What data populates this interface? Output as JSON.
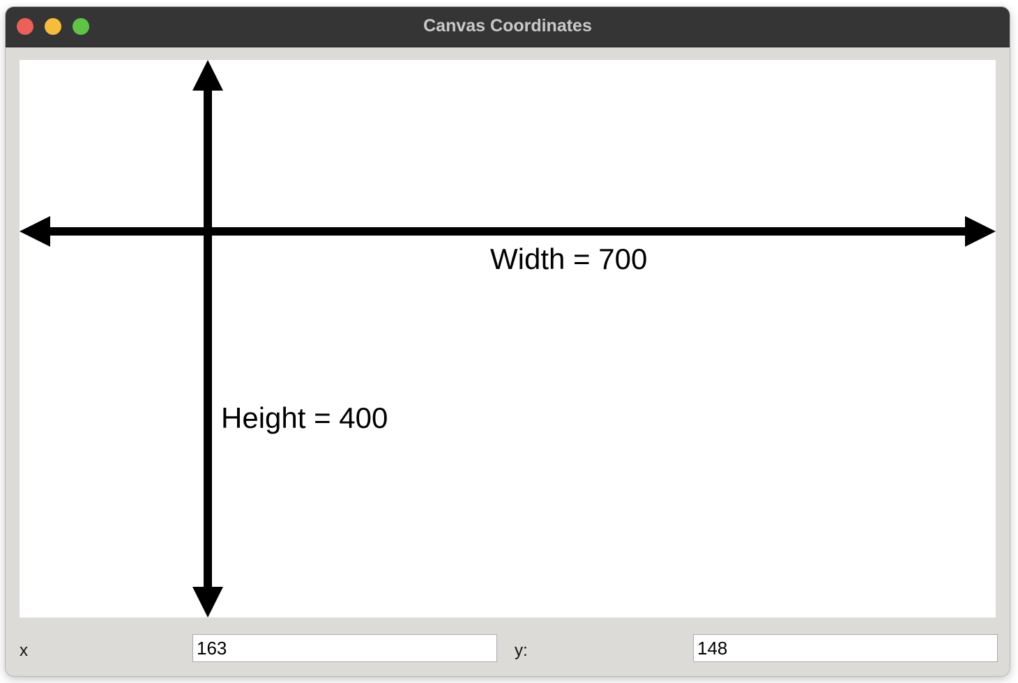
{
  "window": {
    "title": "Canvas Coordinates"
  },
  "canvas": {
    "width_label": "Width = 700",
    "height_label": "Height = 400"
  },
  "coordinates": {
    "x_label": "x",
    "x_value": "163",
    "y_label": "y:",
    "y_value": "148"
  },
  "colors": {
    "titlebar": "#353535",
    "window_background": "#dcdbd7",
    "close_button": "#ee5f57",
    "minimize_button": "#f6bd3b",
    "maximize_button": "#5ec544",
    "arrow": "#000000"
  }
}
